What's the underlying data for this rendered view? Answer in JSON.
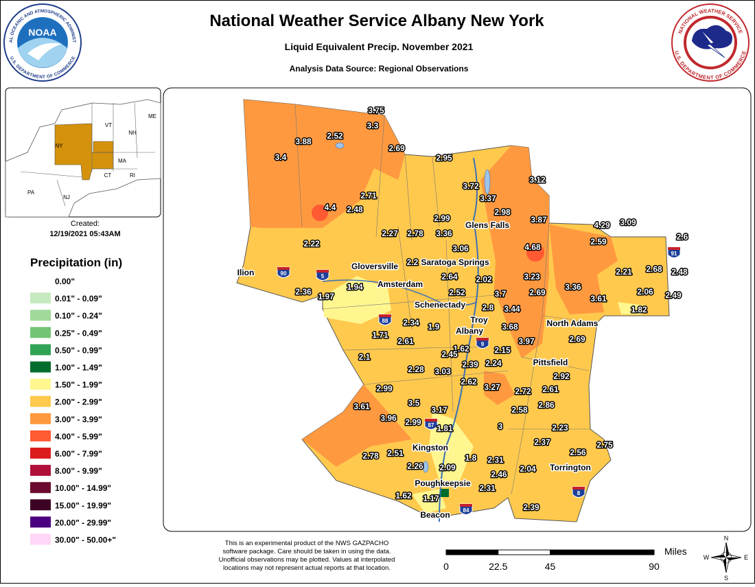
{
  "header": {
    "title": "National Weather Service Albany New York",
    "subtitle": "Liquid Equivalent Precip. November 2021",
    "source": "Analysis Data Source: Regional Observations"
  },
  "logos": {
    "noaa_text": "NOAA",
    "noaa_ring_top": "NATIONAL OCEANIC AND ATMOSPHERIC ADMINISTRATION",
    "noaa_ring_bottom": "U.S. DEPARTMENT OF COMMERCE",
    "nws_ring_top": "NATIONAL WEATHER SERVICE",
    "nws_ring_bottom": "U.S. DEPARTMENT OF COMMERCE"
  },
  "inset": {
    "states": [
      "ME",
      "VT",
      "NH",
      "NY",
      "MA",
      "CT",
      "RI",
      "PA",
      "NJ"
    ],
    "created_label": "Created:",
    "created": "12/19/2021 05:43AM"
  },
  "legend": {
    "title": "Precipitation (in)",
    "items": [
      {
        "label": "0.00\"",
        "color": "#ffffff"
      },
      {
        "label": "0.01\" - 0.09\"",
        "color": "#c7e9c0"
      },
      {
        "label": "0.10\" - 0.24\"",
        "color": "#a1d99b"
      },
      {
        "label": "0.25\" - 0.49\"",
        "color": "#74c476"
      },
      {
        "label": "0.50\" - 0.99\"",
        "color": "#31a354"
      },
      {
        "label": "1.00\" - 1.49\"",
        "color": "#006d2c"
      },
      {
        "label": "1.50\" - 1.99\"",
        "color": "#fff68f"
      },
      {
        "label": "2.00\" - 2.99\"",
        "color": "#ffc94d"
      },
      {
        "label": "3.00\" - 3.99\"",
        "color": "#ff9940"
      },
      {
        "label": "4.00\" - 5.99\"",
        "color": "#ff5a32"
      },
      {
        "label": "6.00\" - 7.99\"",
        "color": "#dd1c1c"
      },
      {
        "label": "8.00\" - 9.99\"",
        "color": "#b0103a"
      },
      {
        "label": "10.00\" - 14.99\"",
        "color": "#6b0a2e"
      },
      {
        "label": "15.00\" - 19.99\"",
        "color": "#3d0324"
      },
      {
        "label": "20.00\" - 29.99\"",
        "color": "#4b0080"
      },
      {
        "label": "30.00\" - 50.00+\"",
        "color": "#ffd6f5"
      }
    ]
  },
  "stations": [
    3.75,
    3.3,
    3.88,
    2.52,
    2.69,
    2.95,
    3.4,
    3.72,
    3.12,
    3.37,
    2.71,
    4.4,
    2.48,
    2.98,
    2.99,
    3.87,
    4.29,
    3.09,
    2.6,
    2.27,
    2.78,
    3.36,
    2.22,
    4.68,
    2.59,
    3.06,
    2.2,
    2.21,
    2.68,
    2.48,
    2.64,
    2.02,
    3.23,
    1.94,
    3.36,
    2.36,
    1.97,
    2.52,
    3.7,
    2.69,
    2.06,
    2.49,
    3.61,
    2.8,
    3.44,
    1.82,
    2.34,
    1.9,
    3.68,
    1.71,
    2.61,
    3.97,
    2.69,
    1.62,
    2.15,
    2.45,
    2.1,
    2.39,
    2.24,
    2.28,
    3.03,
    2.92,
    2.62,
    3.27,
    2.72,
    2.61,
    2.99,
    3.5,
    3.61,
    2.86,
    2.58,
    3.17,
    3.96,
    2.99,
    1.81,
    3,
    2.23,
    2.37,
    2.75,
    2.56,
    2.78,
    2.51,
    1.8,
    2.31,
    2.26,
    2.09,
    2.46,
    2.04,
    2.31,
    1.62,
    1.17,
    2.39
  ],
  "cities": [
    "Glens Falls",
    "Saratoga Springs",
    "Gloversville",
    "Ilion",
    "Amsterdam",
    "Schenectady",
    "Troy",
    "Albany",
    "North Adams",
    "Pittsfield",
    "Kingston",
    "Torrington",
    "Poughkeepsie",
    "Beacon"
  ],
  "shields": [
    "90",
    "5",
    "88",
    "9",
    "91",
    "87",
    "84",
    "8"
  ],
  "scale": {
    "unit": "Miles",
    "ticks": [
      0,
      22.5,
      45,
      90
    ]
  },
  "compass": [
    "N",
    "S",
    "E",
    "W"
  ],
  "disclaimer": [
    "This is an experimental product of the NWS GAZPACHO",
    "software package. Care should be taken in using the data.",
    "Unofficial observations may be plotted. Values at interpolated",
    "locations may not represent actual reports at that location."
  ]
}
